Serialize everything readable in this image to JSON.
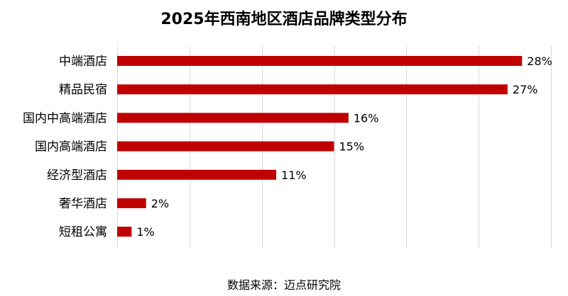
{
  "chart_data": {
    "type": "bar",
    "orientation": "horizontal",
    "title": "2025年西南地区酒店品牌类型分布",
    "categories": [
      "中端酒店",
      "精品民宿",
      "国内中高端酒店",
      "国内高端酒店",
      "经济型酒店",
      "奢华酒店",
      "短租公寓"
    ],
    "values": [
      28,
      27,
      16,
      15,
      11,
      2,
      1
    ],
    "value_labels": [
      "28%",
      "27%",
      "16%",
      "15%",
      "11%",
      "2%",
      "1%"
    ],
    "xlim": [
      0,
      30
    ],
    "grid": true,
    "legend": "none"
  },
  "source_label": "数据来源：迈点研究院",
  "colors": {
    "bar": "#c00000",
    "grid": "#d9d9d9",
    "text": "#000000"
  }
}
